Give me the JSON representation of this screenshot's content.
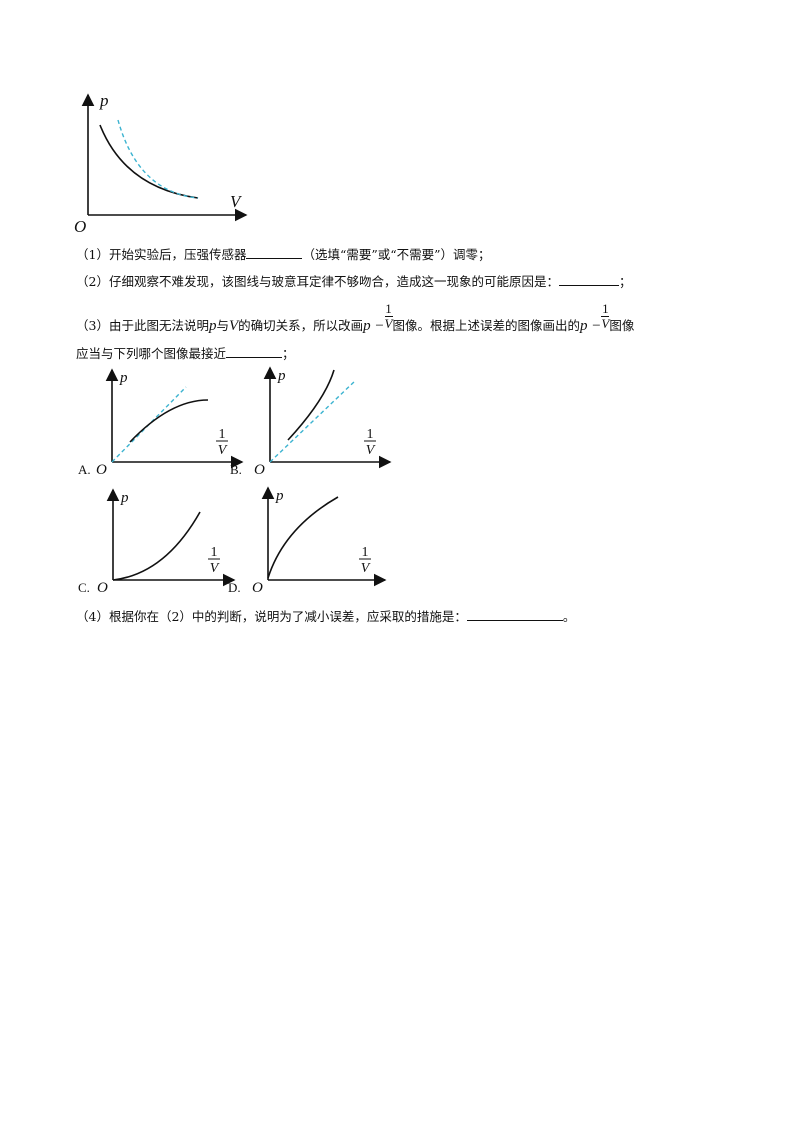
{
  "main_figure": {
    "y_label": "p",
    "x_label": "V",
    "origin": "O"
  },
  "q1": {
    "number": "（1）",
    "text_before": "开始实验后，压强传感器",
    "text_after": "（选填“需要”或“不需要”）调零；"
  },
  "q2": {
    "number": "（2）",
    "text_before": "仔细观察不难发现，该图线与玻意耳定律不够吻合，造成这一现象的可能原因是：",
    "text_after": "；"
  },
  "q3": {
    "number": "（3）",
    "t1": "由于此图无法说明",
    "var_p": "p",
    "t2": "与",
    "var_V": "V",
    "t3": "的确切关系，所以改画",
    "expr_left": "p −",
    "expr_num": "1",
    "expr_den": "V",
    "t4": "图像。根据上述误差的图像画出的",
    "t5": "图像",
    "t6": "应当与下列哪个图像最接近",
    "end": "；"
  },
  "options": [
    {
      "label": "A.",
      "y_label": "p",
      "x_num": "1",
      "x_den": "V",
      "origin": "O"
    },
    {
      "label": "B.",
      "y_label": "p",
      "x_num": "1",
      "x_den": "V",
      "origin": "O"
    },
    {
      "label": "C.",
      "y_label": "p",
      "x_num": "1",
      "x_den": "V",
      "origin": "O"
    },
    {
      "label": "D.",
      "y_label": "p",
      "x_num": "1",
      "x_den": "V",
      "origin": "O"
    }
  ],
  "q4": {
    "number": "（4）",
    "text_before": "根据你在（2）中的判断，说明为了减小误差，应采取的措施是：",
    "text_after": "。"
  }
}
